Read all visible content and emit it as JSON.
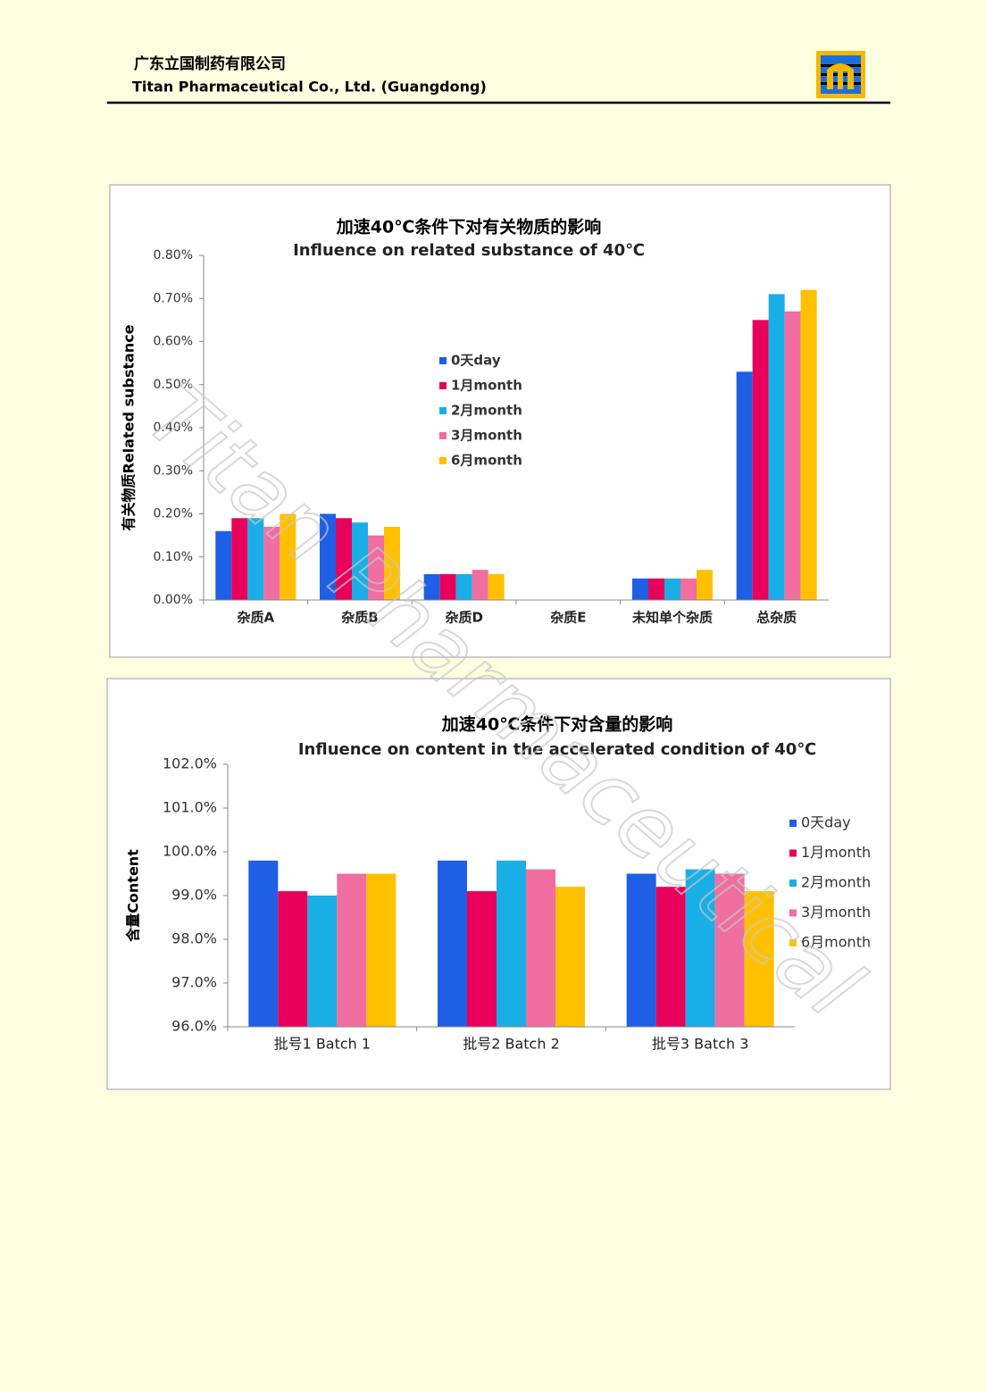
{
  "header": {
    "company_cn": "广东立国制药有限公司",
    "company_en": "Titan Pharmaceutical Co., Ltd. (Guangdong)"
  },
  "watermark": "Titan Pharmaceutical",
  "chart_data": [
    {
      "type": "bar",
      "title": "加速40℃条件下对有关物质的影响",
      "subtitle": "Influence on related substance of 40℃",
      "y_label": "有关物质Related substance",
      "categories": [
        "杂质A",
        "杂质B",
        "杂质D",
        "杂质E",
        "未知单个杂质",
        "总杂质"
      ],
      "series": [
        {
          "name": "0天day",
          "color": "#1f5fe6",
          "values": [
            0.16,
            0.2,
            0.06,
            0,
            0.05,
            0.53
          ]
        },
        {
          "name": "1月month",
          "color": "#e8005a",
          "values": [
            0.19,
            0.19,
            0.06,
            0,
            0.05,
            0.65
          ]
        },
        {
          "name": "2月month",
          "color": "#1aaee6",
          "values": [
            0.19,
            0.18,
            0.06,
            0,
            0.05,
            0.71
          ]
        },
        {
          "name": "3月month",
          "color": "#f06ea0",
          "values": [
            0.17,
            0.15,
            0.07,
            0,
            0.05,
            0.67
          ]
        },
        {
          "name": "6月month",
          "color": "#ffc000",
          "values": [
            0.2,
            0.17,
            0.06,
            0,
            0.07,
            0.72
          ]
        }
      ],
      "ylim": [
        0,
        0.8
      ],
      "yticks": [
        {
          "value": 0,
          "label": "0.00%"
        },
        {
          "value": 0.1,
          "label": "0.10%"
        },
        {
          "value": 0.2,
          "label": "0.20%"
        },
        {
          "value": 0.3,
          "label": "0.30%"
        },
        {
          "value": 0.4,
          "label": "0.40%"
        },
        {
          "value": 0.5,
          "label": "0.50%"
        },
        {
          "value": 0.6,
          "label": "0.60%"
        },
        {
          "value": 0.7,
          "label": "0.70%"
        },
        {
          "value": 0.8,
          "label": "0.80%"
        }
      ],
      "legend": "center"
    },
    {
      "type": "bar",
      "title": "加速40℃条件下对含量的影响",
      "subtitle": "Influence on content in the accelerated condition of 40℃",
      "y_label": "含量Content",
      "categories": [
        "批号1  Batch 1",
        "批号2  Batch 2",
        "批号3  Batch 3"
      ],
      "series": [
        {
          "name": "0天day",
          "color": "#1f5fe6",
          "values": [
            99.8,
            99.8,
            99.5
          ]
        },
        {
          "name": "1月month",
          "color": "#e8005a",
          "values": [
            99.1,
            99.1,
            99.2
          ]
        },
        {
          "name": "2月month",
          "color": "#1aaee6",
          "values": [
            99.0,
            99.8,
            99.6
          ]
        },
        {
          "name": "3月month",
          "color": "#f06ea0",
          "values": [
            99.5,
            99.6,
            99.5
          ]
        },
        {
          "name": "6月month",
          "color": "#ffc000",
          "values": [
            99.5,
            99.2,
            99.1
          ]
        }
      ],
      "ylim": [
        96,
        102
      ],
      "yticks": [
        {
          "value": 96,
          "label": "96.0%"
        },
        {
          "value": 97,
          "label": "97.0%"
        },
        {
          "value": 98,
          "label": "98.0%"
        },
        {
          "value": 99,
          "label": "99.0%"
        },
        {
          "value": 100,
          "label": "100.0%"
        },
        {
          "value": 101,
          "label": "101.0%"
        },
        {
          "value": 102,
          "label": "102.0%"
        }
      ],
      "legend": "right"
    }
  ]
}
